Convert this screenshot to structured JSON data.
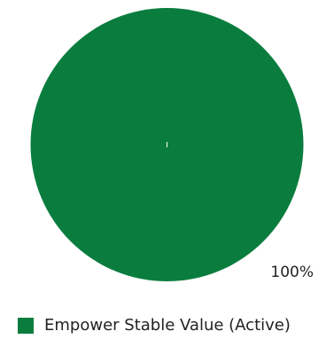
{
  "chart_data": {
    "type": "pie",
    "categories": [
      "Empower Stable Value (Active)"
    ],
    "values": [
      100
    ],
    "labels": [
      "100%"
    ],
    "colors": [
      "#0a7d3e"
    ],
    "legend": {
      "placement": "bottom",
      "entries": [
        "Empower Stable Value (Active)"
      ]
    }
  }
}
